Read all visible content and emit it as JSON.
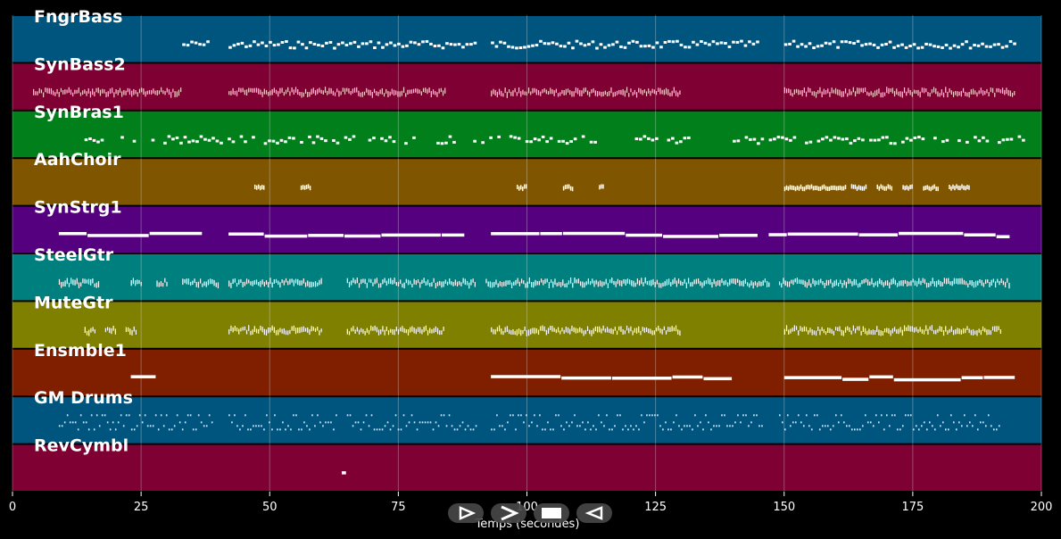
{
  "chart_data": {
    "type": "piano-roll",
    "xlabel": "Temps (secondes)",
    "xlim": [
      0,
      200
    ],
    "xticks": [
      0,
      25,
      50,
      75,
      100,
      125,
      150,
      175,
      200
    ],
    "grid": true,
    "tracks": [
      {
        "name": "FngrBass",
        "color": "#00557f",
        "note_color": "#ffffff",
        "segments": [
          [
            33,
            38
          ],
          [
            42,
            90
          ],
          [
            93,
            145
          ],
          [
            150,
            195
          ]
        ],
        "style": "line",
        "density": "medium"
      },
      {
        "name": "SynBass2",
        "color": "#7f0033",
        "note_color": "#ffcccc",
        "segments": [
          [
            4,
            33
          ],
          [
            42,
            84
          ],
          [
            93,
            130
          ],
          [
            150,
            195
          ]
        ],
        "style": "dense",
        "density": "high"
      },
      {
        "name": "SynBras1",
        "color": "#007f1a",
        "note_color": "#ffffff",
        "segments": [
          [
            14,
            24
          ],
          [
            27,
            86
          ],
          [
            88,
            115
          ],
          [
            121,
            132
          ],
          [
            140,
            197
          ]
        ],
        "style": "scatter",
        "density": "medium"
      },
      {
        "name": "AahChoir",
        "color": "#7f5500",
        "note_color": "#ffffff",
        "segments": [
          [
            47,
            49
          ],
          [
            56,
            58
          ],
          [
            98,
            100
          ],
          [
            107,
            109
          ],
          [
            114,
            115
          ],
          [
            150,
            162
          ],
          [
            163,
            166
          ],
          [
            168,
            171
          ],
          [
            173,
            175
          ],
          [
            177,
            180
          ],
          [
            182,
            186
          ]
        ],
        "style": "blocks",
        "density": "high"
      },
      {
        "name": "SynStrg1",
        "color": "#55007f",
        "note_color": "#ffffff",
        "segments": [
          [
            9,
            37
          ],
          [
            42,
            88
          ],
          [
            93,
            145
          ],
          [
            147,
            194
          ]
        ],
        "style": "long",
        "density": "low"
      },
      {
        "name": "SteelGtr",
        "color": "#007f7f",
        "note_color": "#ffffff",
        "segments": [
          [
            9,
            17
          ],
          [
            23,
            25
          ],
          [
            28,
            30
          ],
          [
            33,
            40
          ],
          [
            42,
            60
          ],
          [
            65,
            90
          ],
          [
            92,
            147
          ],
          [
            149,
            194
          ]
        ],
        "style": "dense",
        "density": "high"
      },
      {
        "name": "MuteGtr",
        "color": "#7f7f00",
        "note_color": "#ffffff",
        "segments": [
          [
            14,
            16
          ],
          [
            18,
            20
          ],
          [
            22,
            24
          ],
          [
            42,
            60
          ],
          [
            65,
            84
          ],
          [
            93,
            130
          ],
          [
            150,
            192
          ]
        ],
        "style": "dense",
        "density": "high"
      },
      {
        "name": "Ensmble1",
        "color": "#7f1f00",
        "note_color": "#ffffff",
        "segments": [
          [
            23,
            28
          ],
          [
            93,
            140
          ],
          [
            150,
            195
          ]
        ],
        "style": "long",
        "density": "low"
      },
      {
        "name": "GM Drums",
        "color": "#00557f",
        "note_color": "#cfe6ff",
        "segments": [
          [
            9,
            39
          ],
          [
            42,
            63
          ],
          [
            65,
            90
          ],
          [
            93,
            146
          ],
          [
            149,
            192
          ]
        ],
        "style": "drums",
        "density": "high"
      },
      {
        "name": "RevCymbl",
        "color": "#7f0033",
        "note_color": "#ffffff",
        "segments": [
          [
            64,
            65
          ]
        ],
        "style": "single",
        "density": "low"
      }
    ]
  },
  "transport": {
    "buttons": [
      {
        "name": "play-outline-icon",
        "label": "play"
      },
      {
        "name": "forward-icon",
        "label": "forward"
      },
      {
        "name": "stop-icon",
        "label": "stop"
      },
      {
        "name": "rewind-icon",
        "label": "rewind"
      }
    ]
  }
}
